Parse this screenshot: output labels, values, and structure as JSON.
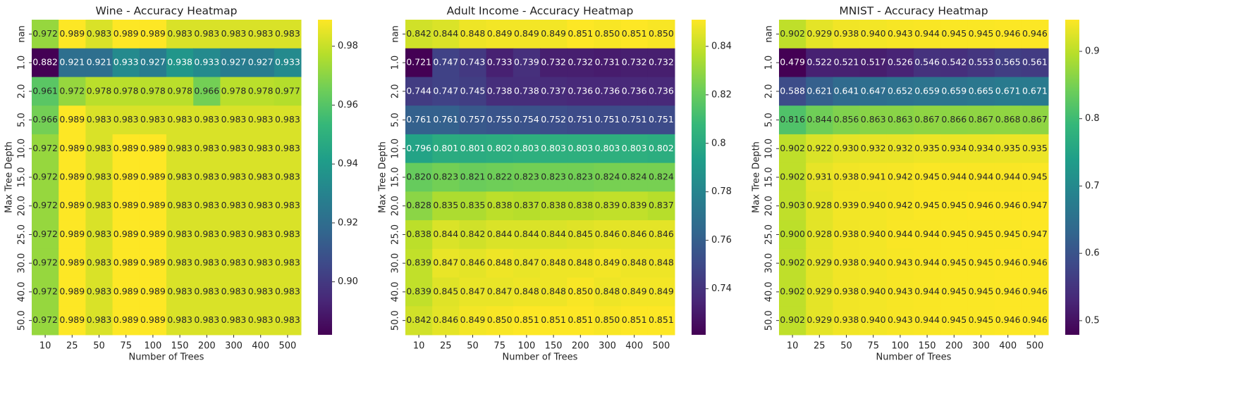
{
  "chart_data": [
    {
      "type": "heatmap",
      "title": "Wine - Accuracy Heatmap",
      "xlabel": "Number of Trees",
      "ylabel": "Max Tree Depth",
      "colormap": "viridis",
      "x_categories": [
        "10",
        "25",
        "50",
        "75",
        "100",
        "150",
        "200",
        "300",
        "400",
        "500"
      ],
      "y_categories": [
        "nan",
        "1.0",
        "2.0",
        "5.0",
        "10.0",
        "15.0",
        "20.0",
        "25.0",
        "30.0",
        "40.0",
        "50.0"
      ],
      "values": [
        [
          0.972,
          0.989,
          0.983,
          0.989,
          0.989,
          0.983,
          0.983,
          0.983,
          0.983,
          0.983
        ],
        [
          0.882,
          0.921,
          0.921,
          0.933,
          0.927,
          0.938,
          0.933,
          0.927,
          0.927,
          0.933
        ],
        [
          0.961,
          0.972,
          0.978,
          0.978,
          0.978,
          0.978,
          0.966,
          0.978,
          0.978,
          0.977
        ],
        [
          0.966,
          0.989,
          0.983,
          0.983,
          0.983,
          0.983,
          0.983,
          0.983,
          0.983,
          0.983
        ],
        [
          0.972,
          0.989,
          0.983,
          0.989,
          0.989,
          0.983,
          0.983,
          0.983,
          0.983,
          0.983
        ],
        [
          0.972,
          0.989,
          0.983,
          0.989,
          0.989,
          0.983,
          0.983,
          0.983,
          0.983,
          0.983
        ],
        [
          0.972,
          0.989,
          0.983,
          0.989,
          0.989,
          0.983,
          0.983,
          0.983,
          0.983,
          0.983
        ],
        [
          0.972,
          0.989,
          0.983,
          0.989,
          0.989,
          0.983,
          0.983,
          0.983,
          0.983,
          0.983
        ],
        [
          0.972,
          0.989,
          0.983,
          0.989,
          0.989,
          0.983,
          0.983,
          0.983,
          0.983,
          0.983
        ],
        [
          0.972,
          0.989,
          0.983,
          0.989,
          0.989,
          0.983,
          0.983,
          0.983,
          0.983,
          0.983
        ],
        [
          0.972,
          0.989,
          0.983,
          0.989,
          0.989,
          0.983,
          0.983,
          0.983,
          0.983,
          0.983
        ]
      ],
      "zlim": [
        0.882,
        0.989
      ],
      "zticks": [
        {
          "value": 0.9,
          "label": "0.90"
        },
        {
          "value": 0.92,
          "label": "0.92"
        },
        {
          "value": 0.94,
          "label": "0.94"
        },
        {
          "value": 0.96,
          "label": "0.96"
        },
        {
          "value": 0.98,
          "label": "0.98"
        }
      ]
    },
    {
      "type": "heatmap",
      "title": "Adult Income - Accuracy Heatmap",
      "xlabel": "Number of Trees",
      "ylabel": "Max Tree Depth",
      "colormap": "viridis",
      "x_categories": [
        "10",
        "25",
        "50",
        "75",
        "100",
        "150",
        "200",
        "300",
        "400",
        "500"
      ],
      "y_categories": [
        "nan",
        "1.0",
        "2.0",
        "5.0",
        "10.0",
        "15.0",
        "20.0",
        "25.0",
        "30.0",
        "40.0",
        "50.0"
      ],
      "values": [
        [
          0.842,
          0.844,
          0.848,
          0.849,
          0.849,
          0.849,
          0.851,
          0.85,
          0.851,
          0.85
        ],
        [
          0.721,
          0.747,
          0.743,
          0.733,
          0.739,
          0.732,
          0.732,
          0.731,
          0.732,
          0.732
        ],
        [
          0.744,
          0.747,
          0.745,
          0.738,
          0.738,
          0.737,
          0.736,
          0.736,
          0.736,
          0.736
        ],
        [
          0.761,
          0.761,
          0.757,
          0.755,
          0.754,
          0.752,
          0.751,
          0.751,
          0.751,
          0.751
        ],
        [
          0.796,
          0.801,
          0.801,
          0.802,
          0.803,
          0.803,
          0.803,
          0.803,
          0.803,
          0.802
        ],
        [
          0.82,
          0.823,
          0.821,
          0.822,
          0.823,
          0.823,
          0.823,
          0.824,
          0.824,
          0.824
        ],
        [
          0.828,
          0.835,
          0.835,
          0.838,
          0.837,
          0.838,
          0.838,
          0.839,
          0.839,
          0.837
        ],
        [
          0.838,
          0.844,
          0.842,
          0.844,
          0.844,
          0.844,
          0.845,
          0.846,
          0.846,
          0.846
        ],
        [
          0.839,
          0.847,
          0.846,
          0.848,
          0.847,
          0.848,
          0.848,
          0.849,
          0.848,
          0.848
        ],
        [
          0.839,
          0.845,
          0.847,
          0.847,
          0.848,
          0.848,
          0.85,
          0.848,
          0.849,
          0.849
        ],
        [
          0.842,
          0.846,
          0.849,
          0.85,
          0.851,
          0.851,
          0.851,
          0.85,
          0.851,
          0.851
        ]
      ],
      "value_labels": [
        [
          "0.842",
          "0.844",
          "0.848",
          "0.849",
          "0.849",
          "0.849",
          "0.851",
          "0.850",
          "0.851",
          "0.850"
        ],
        [
          "0.721",
          "0.747",
          "0.743",
          "0.733",
          "0.739",
          "0.732",
          "0.732",
          "0.731",
          "0.732",
          "0.732"
        ],
        [
          "0.744",
          "0.747",
          "0.745",
          "0.738",
          "0.738",
          "0.737",
          "0.736",
          "0.736",
          "0.736",
          "0.736"
        ],
        [
          "0.761",
          "0.761",
          "0.757",
          "0.755",
          "0.754",
          "0.752",
          "0.751",
          "0.751",
          "0.751",
          "0.751"
        ],
        [
          "0.796",
          "0.801",
          "0.801",
          "0.802",
          "0.803",
          "0.803",
          "0.803",
          "0.803",
          "0.803",
          "0.802"
        ],
        [
          "0.820",
          "0.823",
          "0.821",
          "0.822",
          "0.823",
          "0.823",
          "0.823",
          "0.824",
          "0.824",
          "0.824"
        ],
        [
          "0.828",
          "0.835",
          "0.835",
          "0.838",
          "0.837",
          "0.838",
          "0.838",
          "0.839",
          "0.839",
          "0.837"
        ],
        [
          "0.838",
          "0.844",
          "0.842",
          "0.844",
          "0.844",
          "0.844",
          "0.845",
          "0.846",
          "0.846",
          "0.846"
        ],
        [
          "0.839",
          "0.847",
          "0.846",
          "0.848",
          "0.847",
          "0.848",
          "0.848",
          "0.849",
          "0.848",
          "0.848"
        ],
        [
          "0.839",
          "0.845",
          "0.847",
          "0.847",
          "0.848",
          "0.848",
          "0.850",
          "0.848",
          "0.849",
          "0.849"
        ],
        [
          "0.842",
          "0.846",
          "0.849",
          "0.850",
          "0.851",
          "0.851",
          "0.851",
          "0.850",
          "0.851",
          "0.851"
        ]
      ],
      "zlim": [
        0.721,
        0.851
      ],
      "zticks": [
        0.74,
        0.76,
        0.78,
        0.8,
        {
          "value": 0.82,
          "label": "0.82"
        },
        0.84
      ]
    },
    {
      "type": "heatmap",
      "title": "MNIST - Accuracy Heatmap",
      "xlabel": "Number of Trees",
      "ylabel": "Max Tree Depth",
      "colormap": "viridis",
      "x_categories": [
        "10",
        "25",
        "50",
        "75",
        "100",
        "150",
        "200",
        "300",
        "400",
        "500"
      ],
      "y_categories": [
        "nan",
        "1.0",
        "2.0",
        "5.0",
        "10.0",
        "15.0",
        "20.0",
        "25.0",
        "30.0",
        "40.0",
        "50.0"
      ],
      "values": [
        [
          0.902,
          0.929,
          0.938,
          0.94,
          0.943,
          0.944,
          0.945,
          0.945,
          0.946,
          0.946
        ],
        [
          0.479,
          0.522,
          0.521,
          0.517,
          0.526,
          0.546,
          0.542,
          0.553,
          0.565,
          0.561
        ],
        [
          0.588,
          0.621,
          0.641,
          0.647,
          0.652,
          0.659,
          0.659,
          0.665,
          0.671,
          0.671
        ],
        [
          0.816,
          0.844,
          0.856,
          0.863,
          0.863,
          0.867,
          0.866,
          0.867,
          0.868,
          0.867
        ],
        [
          0.902,
          0.922,
          0.93,
          0.932,
          0.932,
          0.935,
          0.934,
          0.934,
          0.935,
          0.935
        ],
        [
          0.902,
          0.931,
          0.938,
          0.941,
          0.942,
          0.945,
          0.944,
          0.944,
          0.944,
          0.945
        ],
        [
          0.903,
          0.928,
          0.939,
          0.94,
          0.942,
          0.945,
          0.945,
          0.946,
          0.946,
          0.947
        ],
        [
          0.9,
          0.928,
          0.938,
          0.94,
          0.944,
          0.944,
          0.945,
          0.945,
          0.945,
          0.947
        ],
        [
          0.902,
          0.929,
          0.938,
          0.94,
          0.943,
          0.944,
          0.945,
          0.945,
          0.946,
          0.946
        ],
        [
          0.902,
          0.929,
          0.938,
          0.94,
          0.943,
          0.944,
          0.945,
          0.945,
          0.946,
          0.946
        ],
        [
          0.902,
          0.929,
          0.938,
          0.94,
          0.943,
          0.944,
          0.945,
          0.945,
          0.946,
          0.946
        ]
      ],
      "value_labels": [
        [
          "0.902",
          "0.929",
          "0.938",
          "0.940",
          "0.943",
          "0.944",
          "0.945",
          "0.945",
          "0.946",
          "0.946"
        ],
        [
          "0.479",
          "0.522",
          "0.521",
          "0.517",
          "0.526",
          "0.546",
          "0.542",
          "0.553",
          "0.565",
          "0.561"
        ],
        [
          "0.588",
          "0.621",
          "0.641",
          "0.647",
          "0.652",
          "0.659",
          "0.659",
          "0.665",
          "0.671",
          "0.671"
        ],
        [
          "0.816",
          "0.844",
          "0.856",
          "0.863",
          "0.863",
          "0.867",
          "0.866",
          "0.867",
          "0.868",
          "0.867"
        ],
        [
          "0.902",
          "0.922",
          "0.930",
          "0.932",
          "0.932",
          "0.935",
          "0.934",
          "0.934",
          "0.935",
          "0.935"
        ],
        [
          "0.902",
          "0.931",
          "0.938",
          "0.941",
          "0.942",
          "0.945",
          "0.944",
          "0.944",
          "0.944",
          "0.945"
        ],
        [
          "0.903",
          "0.928",
          "0.939",
          "0.940",
          "0.942",
          "0.945",
          "0.945",
          "0.946",
          "0.946",
          "0.947"
        ],
        [
          "0.900",
          "0.928",
          "0.938",
          "0.940",
          "0.944",
          "0.944",
          "0.945",
          "0.945",
          "0.945",
          "0.947"
        ],
        [
          "0.902",
          "0.929",
          "0.938",
          "0.940",
          "0.943",
          "0.944",
          "0.945",
          "0.945",
          "0.946",
          "0.946"
        ],
        [
          "0.902",
          "0.929",
          "0.938",
          "0.940",
          "0.943",
          "0.944",
          "0.945",
          "0.945",
          "0.946",
          "0.946"
        ],
        [
          "0.902",
          "0.929",
          "0.938",
          "0.940",
          "0.943",
          "0.944",
          "0.945",
          "0.945",
          "0.946",
          "0.946"
        ]
      ],
      "zlim": [
        0.479,
        0.947
      ],
      "zticks": [
        0.5,
        0.6,
        0.7,
        0.8,
        0.9
      ]
    }
  ]
}
